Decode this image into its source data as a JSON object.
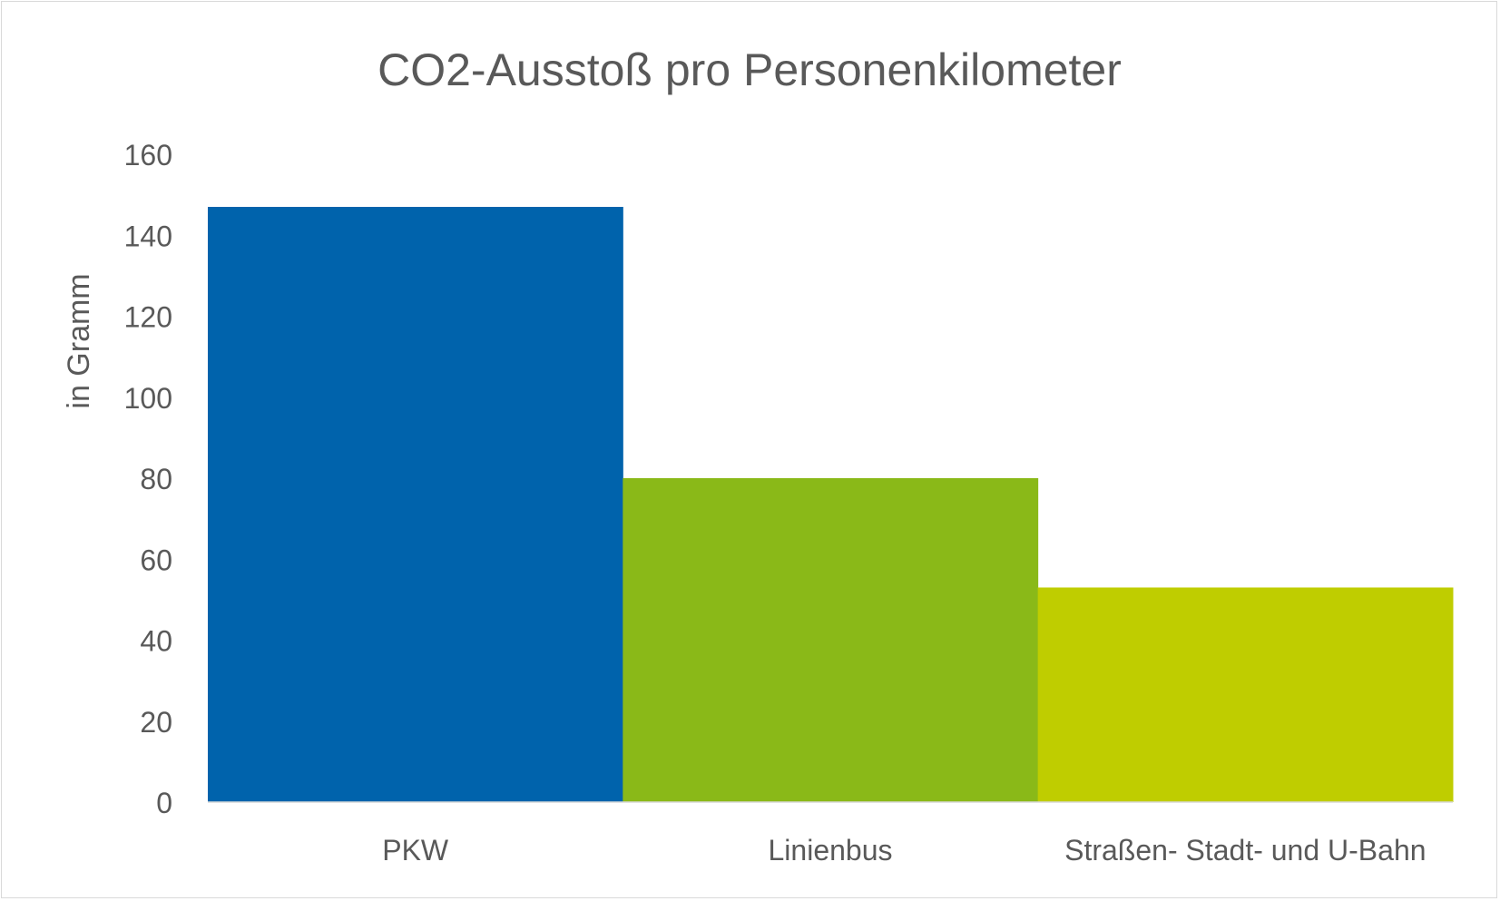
{
  "chart_data": {
    "type": "bar",
    "title": "CO2-Ausstoß pro Personenkilometer",
    "xlabel": "",
    "ylabel": "in Gramm",
    "categories": [
      "PKW",
      "Linienbus",
      "Straßen- Stadt- und U-Bahn"
    ],
    "values": [
      147,
      80,
      53
    ],
    "colors": [
      "#0063AC",
      "#8AB918",
      "#BFCD00"
    ],
    "ylim": [
      0,
      160
    ],
    "yticks": [
      0,
      20,
      40,
      60,
      80,
      100,
      120,
      140,
      160
    ],
    "grid": false,
    "legend": "none"
  }
}
